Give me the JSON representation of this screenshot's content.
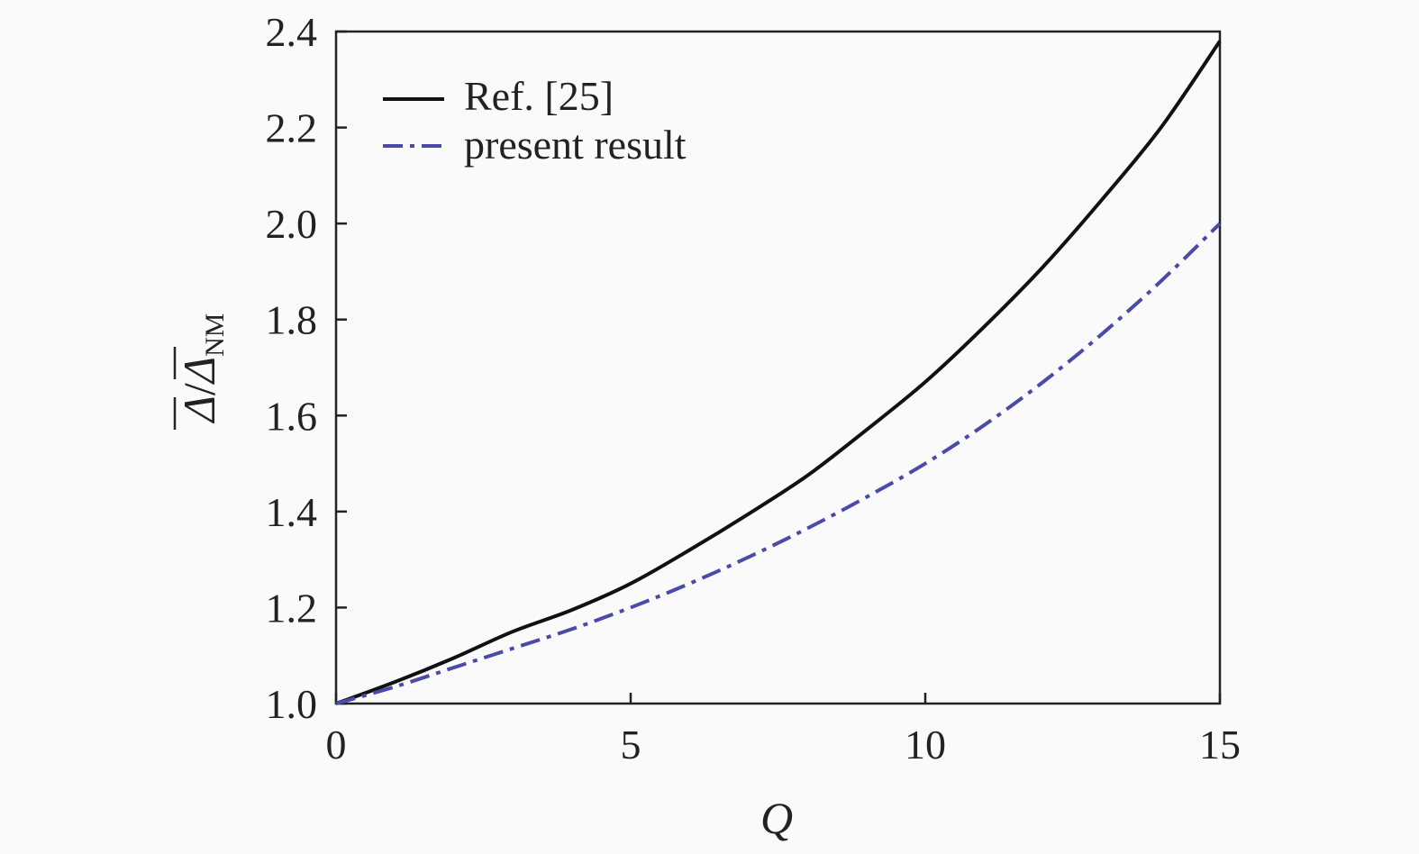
{
  "chart_data": {
    "type": "line",
    "xlabel": "Q",
    "ylabel": {
      "numerator": "Δ",
      "separator": "/",
      "denominator": "Δ",
      "subscript": "NM"
    },
    "xlim": [
      0,
      15
    ],
    "ylim": [
      1.0,
      2.4
    ],
    "xticks": [
      0,
      5,
      10,
      15
    ],
    "xtick_labels": [
      "0",
      "5",
      "10",
      "15"
    ],
    "yticks": [
      1.0,
      1.2,
      1.4,
      1.6,
      1.8,
      2.0,
      2.2,
      2.4
    ],
    "ytick_labels": [
      "1.0",
      "1.2",
      "1.4",
      "1.6",
      "1.8",
      "2.0",
      "2.2",
      "2.4"
    ],
    "grid": false,
    "legend_position": "top-left",
    "series": [
      {
        "name": "Ref. [25]",
        "style": "solid",
        "color": "#111111",
        "x": [
          0,
          1,
          2,
          3,
          4,
          5,
          6,
          7,
          8,
          9,
          10,
          11,
          12,
          13,
          14,
          15
        ],
        "y": [
          1.0,
          1.045,
          1.095,
          1.15,
          1.195,
          1.25,
          1.32,
          1.395,
          1.475,
          1.57,
          1.67,
          1.785,
          1.91,
          2.05,
          2.2,
          2.38
        ]
      },
      {
        "name": "present result",
        "style": "dashdot",
        "color": "#4a4aa8",
        "x": [
          0,
          1,
          2,
          3,
          4,
          5,
          6,
          7,
          8,
          9,
          10,
          11,
          12,
          13,
          14,
          15
        ],
        "y": [
          1.0,
          1.035,
          1.075,
          1.115,
          1.155,
          1.2,
          1.25,
          1.305,
          1.365,
          1.43,
          1.5,
          1.58,
          1.67,
          1.77,
          1.88,
          2.0
        ]
      }
    ]
  }
}
